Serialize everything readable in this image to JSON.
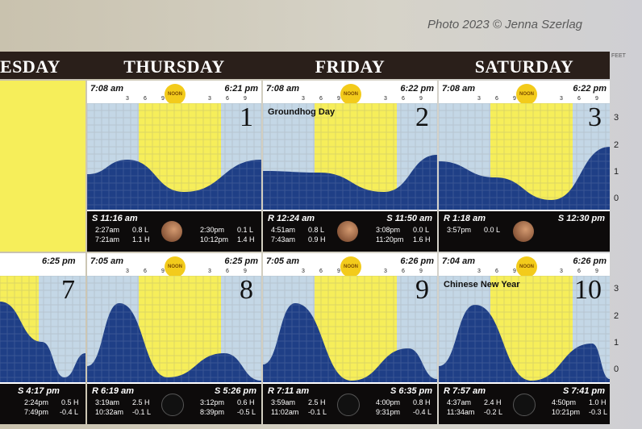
{
  "credit": "Photo 2023 © Jenna Szerlag",
  "days": [
    "ESDAY",
    "THURSDAY",
    "FRIDAY",
    "SATURDAY"
  ],
  "feet_label": "FEET",
  "axis_top": [
    "3",
    "2",
    "1",
    "0"
  ],
  "axis_bottom": [
    "3",
    "2",
    "1",
    "0"
  ],
  "noon_label": "NOON",
  "tick_labels": [
    "3",
    "6",
    "9",
    "3",
    "6",
    "9"
  ],
  "row1": [
    {
      "sunrise": "7:08 am",
      "sunset": "6:21 pm",
      "day": "1",
      "event": "",
      "moon_label": "S 11:16 am",
      "moon_label_side": "left",
      "tides": [
        [
          "2:27am",
          "0.8 L",
          "2:30pm",
          "0.1 L"
        ],
        [
          "7:21am",
          "1.1 H",
          "10:12pm",
          "1.4 H"
        ]
      ]
    },
    {
      "sunrise": "7:08 am",
      "sunset": "6:22 pm",
      "day": "2",
      "event": "Groundhog Day",
      "moon_label": "R 12:24 am",
      "moon_label2": "S 11:50 am",
      "tides": [
        [
          "4:51am",
          "0.8 L",
          "3:08pm",
          "0.0 L"
        ],
        [
          "7:43am",
          "0.9 H",
          "11:20pm",
          "1.6 H"
        ]
      ]
    },
    {
      "sunrise": "7:08 am",
      "sunset": "6:22 pm",
      "day": "3",
      "event": "",
      "moon_label": "R 1:18 am",
      "moon_label2": "S 12:30 pm",
      "tides": [
        [
          "3:57pm",
          "0.0 L",
          "",
          ""
        ]
      ]
    }
  ],
  "row2_partial": {
    "sunset": "6:25 pm",
    "day": "7",
    "moon_label": "S 4:17 pm",
    "tides": [
      [
        "2:24pm",
        "0.5 H"
      ],
      [
        "7:49pm",
        "-0.4 L"
      ]
    ]
  },
  "row2": [
    {
      "sunrise": "7:05 am",
      "sunset": "6:25 pm",
      "day": "8",
      "event": "",
      "moon_label": "R 6:19 am",
      "moon_label2": "S 5:26 pm",
      "tides": [
        [
          "3:19am",
          "2.5 H",
          "3:12pm",
          "0.6 H"
        ],
        [
          "10:32am",
          "-0.1 L",
          "8:39pm",
          "-0.5 L"
        ]
      ]
    },
    {
      "sunrise": "7:05 am",
      "sunset": "6:26 pm",
      "day": "9",
      "event": "",
      "moon_label": "R 7:11 am",
      "moon_label2": "S 6:35 pm",
      "tides": [
        [
          "3:59am",
          "2.5 H",
          "4:00pm",
          "0.8 H"
        ],
        [
          "11:02am",
          "-0.1 L",
          "9:31pm",
          "-0.4 L"
        ]
      ]
    },
    {
      "sunrise": "7:04 am",
      "sunset": "6:26 pm",
      "day": "10",
      "event": "Chinese New Year",
      "moon_label": "R 7:57 am",
      "moon_label2": "S 7:41 pm",
      "tides": [
        [
          "4:37am",
          "2.4 H",
          "4:50pm",
          "1.0 H"
        ],
        [
          "11:34am",
          "-0.2 L",
          "10:21pm",
          "-0.3 L"
        ]
      ]
    }
  ],
  "colors": {
    "day": "#f6ee5a",
    "night": "#c4d7e6",
    "water": "#1f3f86",
    "band": "#2a1f1a"
  }
}
